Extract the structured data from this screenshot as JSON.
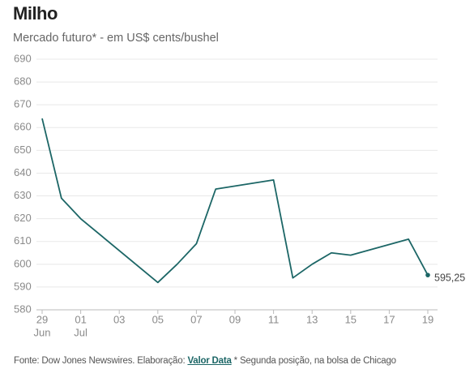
{
  "chart_data": {
    "type": "line",
    "title": "Milho",
    "subtitle": "Mercado futuro* - em US$ cents/bushel",
    "x": [
      "06-29",
      "06-30",
      "07-01",
      "07-05",
      "07-06",
      "07-07",
      "07-08",
      "07-11",
      "07-12",
      "07-13",
      "07-14",
      "07-15",
      "07-18",
      "07-19"
    ],
    "series": [
      {
        "name": "Milho",
        "color": "#1c6666",
        "values": [
          664,
          629,
          620,
          592,
          600,
          609,
          633,
          637,
          594,
          600,
          605,
          604,
          611,
          595.25
        ],
        "value_labels": [
          null,
          null,
          null,
          null,
          null,
          null,
          null,
          null,
          null,
          null,
          null,
          null,
          null,
          "595,25"
        ]
      }
    ],
    "xlim": [
      "06-29",
      "07-19"
    ],
    "xticks": [
      {
        "value": "06-29",
        "label": "29",
        "sublabel": "Jun"
      },
      {
        "value": "07-01",
        "label": "01",
        "sublabel": "Jul"
      },
      {
        "value": "07-03",
        "label": "03"
      },
      {
        "value": "07-05",
        "label": "05"
      },
      {
        "value": "07-07",
        "label": "07"
      },
      {
        "value": "07-09",
        "label": "09"
      },
      {
        "value": "07-11",
        "label": "11"
      },
      {
        "value": "07-13",
        "label": "13"
      },
      {
        "value": "07-15",
        "label": "15"
      },
      {
        "value": "07-17",
        "label": "17"
      },
      {
        "value": "07-19",
        "label": "19"
      }
    ],
    "ylim": [
      580,
      690
    ],
    "yticks": [
      580,
      590,
      600,
      610,
      620,
      630,
      640,
      650,
      660,
      670,
      680,
      690
    ],
    "grid": true,
    "source": {
      "text": "Fonte: Dow Jones Newswires. Elaboração: ",
      "link": "Valor Data",
      "note": " * Segunda posição, na bolsa de Chicago"
    }
  }
}
